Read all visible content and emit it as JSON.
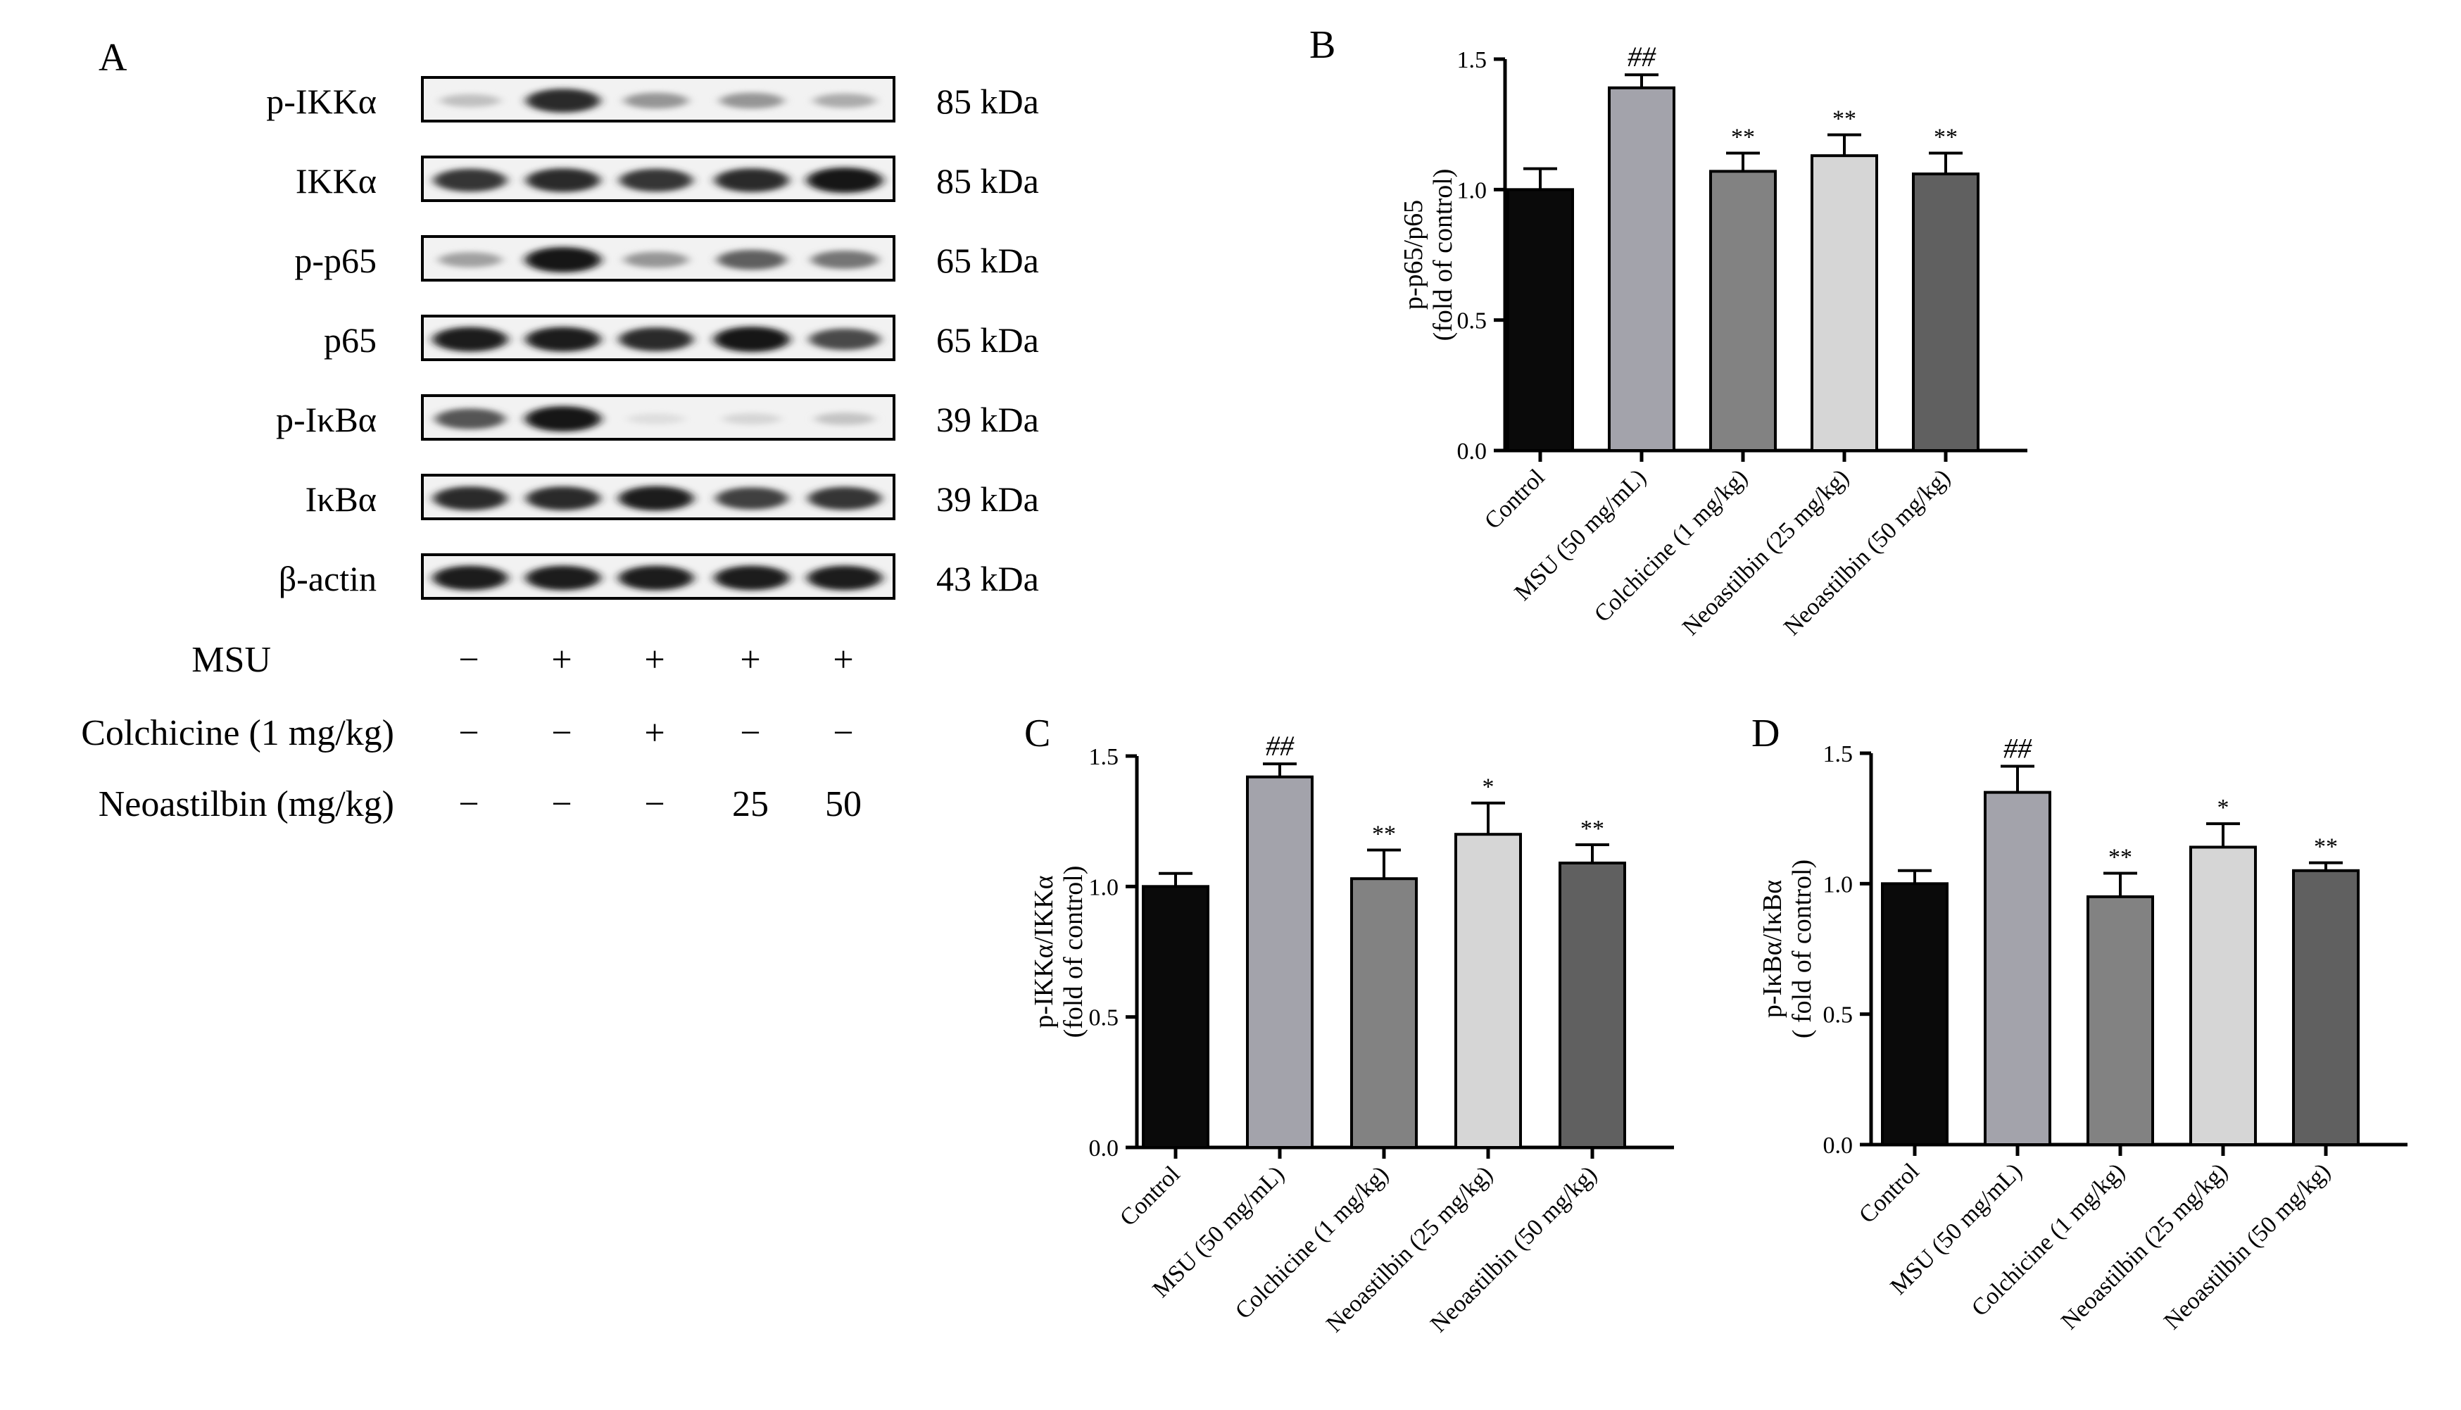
{
  "western_blot": {
    "panel_label": "A",
    "blots": [
      {
        "protein": "p-IKKα",
        "size": "85 kDa",
        "intensity": [
          0.2,
          0.9,
          0.4,
          0.4,
          0.3
        ]
      },
      {
        "protein": "IKKα",
        "size": "85 kDa",
        "intensity": [
          0.85,
          0.9,
          0.85,
          0.9,
          1.0
        ]
      },
      {
        "protein": "p-p65",
        "size": "65 kDa",
        "intensity": [
          0.35,
          1.0,
          0.4,
          0.65,
          0.55
        ]
      },
      {
        "protein": "p65",
        "size": "65 kDa",
        "intensity": [
          0.95,
          0.95,
          0.9,
          1.0,
          0.75
        ]
      },
      {
        "protein": "p-IκBα",
        "size": "39 kDa",
        "intensity": [
          0.7,
          1.0,
          0.06,
          0.1,
          0.18
        ]
      },
      {
        "protein": "IκBα",
        "size": "39 kDa",
        "intensity": [
          0.9,
          0.9,
          0.95,
          0.8,
          0.85
        ]
      },
      {
        "protein": "β-actin",
        "size": "43 kDa",
        "intensity": [
          0.95,
          0.95,
          0.95,
          0.95,
          0.95
        ]
      }
    ],
    "treatments": [
      {
        "label": "MSU",
        "values": [
          "−",
          "+",
          "+",
          "+",
          "+"
        ]
      },
      {
        "label": "Colchicine (1 mg/kg)",
        "values": [
          "−",
          "−",
          "+",
          "−",
          "−"
        ]
      },
      {
        "label": "Neoastilbin (mg/kg)",
        "values": [
          "−",
          "−",
          "−",
          "25",
          "50"
        ]
      }
    ]
  },
  "chart_data": [
    {
      "panel": "B",
      "type": "bar",
      "ylabel": [
        "p-p65/p65",
        "(fold of control)"
      ],
      "ylim": [
        0,
        1.5
      ],
      "yticks": [
        "0.0",
        "0.5",
        "1.0",
        "1.5"
      ],
      "categories": [
        "Control",
        "MSU (50 mg/mL)",
        "Colchicine (1 mg/kg)",
        "Neoastilbin (25 mg/kg)",
        "Neoastilbin (50 mg/kg)"
      ],
      "values": [
        1.0,
        1.39,
        1.07,
        1.13,
        1.06
      ],
      "errors": [
        0.08,
        0.05,
        0.07,
        0.08,
        0.08
      ],
      "significance": [
        "",
        "##",
        "**",
        "**",
        "**"
      ],
      "colors": [
        "#0a0a0a",
        "#a3a3ab",
        "#828282",
        "#d6d6d6",
        "#606060"
      ]
    },
    {
      "panel": "C",
      "type": "bar",
      "ylabel": [
        "p-IKKα/IKKα",
        "(fold of control)"
      ],
      "ylim": [
        0,
        1.5
      ],
      "yticks": [
        "0.0",
        "0.5",
        "1.0",
        "1.5"
      ],
      "categories": [
        "Control",
        "MSU (50 mg/mL)",
        "Colchicine (1 mg/kg)",
        "Neoastilbin (25 mg/kg)",
        "Neoastilbin (50 mg/kg)"
      ],
      "values": [
        1.0,
        1.42,
        1.03,
        1.2,
        1.09
      ],
      "errors": [
        0.05,
        0.05,
        0.11,
        0.12,
        0.07
      ],
      "significance": [
        "",
        "##",
        "**",
        "*",
        "**"
      ],
      "colors": [
        "#0a0a0a",
        "#a3a3ab",
        "#828282",
        "#d6d6d6",
        "#606060"
      ]
    },
    {
      "panel": "D",
      "type": "bar",
      "ylabel": [
        "p-IκBα/IκBα",
        "( fold of control)"
      ],
      "ylim": [
        0,
        1.5
      ],
      "yticks": [
        "0.0",
        "0.5",
        "1.0",
        "1.5"
      ],
      "categories": [
        "Control",
        "MSU (50 mg/mL)",
        "Colchicine (1 mg/kg)",
        "Neoastilbin (25 mg/kg)",
        "Neoastilbin (50 mg/kg)"
      ],
      "values": [
        1.0,
        1.35,
        0.95,
        1.14,
        1.05
      ],
      "errors": [
        0.05,
        0.1,
        0.09,
        0.09,
        0.03
      ],
      "significance": [
        "",
        "##",
        "**",
        "*",
        "**"
      ],
      "colors": [
        "#0a0a0a",
        "#a3a3ab",
        "#828282",
        "#d6d6d6",
        "#606060"
      ]
    }
  ]
}
